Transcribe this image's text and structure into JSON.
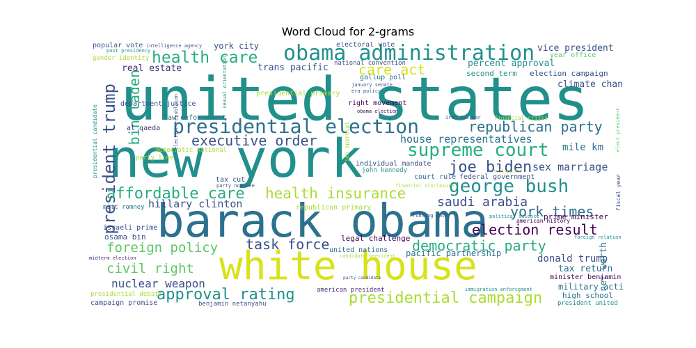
{
  "title": "Word Cloud for 2-grams",
  "palette": [
    "#440154",
    "#472c7a",
    "#3b518b",
    "#2c718e",
    "#21908d",
    "#27ad81",
    "#5cc863",
    "#aadc32",
    "#fde725"
  ],
  "words": [
    {
      "text": "united states",
      "color": "#21908d"
    },
    {
      "text": "new york",
      "color": "#21908d"
    },
    {
      "text": "barack obama",
      "color": "#2c718e"
    },
    {
      "text": "white house",
      "color": "#d8e219"
    },
    {
      "text": "presidential election",
      "color": "#2c718e"
    },
    {
      "text": "obama administration",
      "color": "#21908d"
    },
    {
      "text": "supreme court",
      "color": "#27ad81"
    },
    {
      "text": "george bush",
      "color": "#21908d"
    },
    {
      "text": "health care",
      "color": "#27ad81"
    },
    {
      "text": "president trump",
      "color": "#3b518b"
    },
    {
      "text": "affordable care",
      "color": "#27ad81"
    },
    {
      "text": "health insurance",
      "color": "#aadc32"
    },
    {
      "text": "joe biden",
      "color": "#3b518b"
    },
    {
      "text": "executive order",
      "color": "#3b518b"
    },
    {
      "text": "republican party",
      "color": "#2c718e"
    },
    {
      "text": "democratic party",
      "color": "#27ad81"
    },
    {
      "text": "election result",
      "color": "#440154"
    },
    {
      "text": "york times",
      "color": "#2c718e"
    },
    {
      "text": "saudi arabia",
      "color": "#3b518b"
    },
    {
      "text": "presidential campaign",
      "color": "#aadc32"
    },
    {
      "text": "approval rating",
      "color": "#21908d"
    },
    {
      "text": "foreign policy",
      "color": "#5cc863"
    },
    {
      "text": "civil right",
      "color": "#5cc863"
    },
    {
      "text": "task force",
      "color": "#3b518b"
    },
    {
      "text": "bin laden",
      "color": "#27ad81"
    },
    {
      "text": "care act",
      "color": "#d8e219"
    },
    {
      "text": "nuclear weapon",
      "color": "#3b518b"
    },
    {
      "text": "house representatives",
      "color": "#2c718e"
    },
    {
      "text": "hillary clinton",
      "color": "#3b518b"
    },
    {
      "text": "sex marriage",
      "color": "#3b518b"
    },
    {
      "text": "mile km",
      "color": "#2c718e"
    },
    {
      "text": "donald trump",
      "color": "#3b518b"
    },
    {
      "text": "vice president",
      "color": "#3b518b"
    },
    {
      "text": "climate change",
      "color": "#3b518b"
    },
    {
      "text": "percent approval",
      "color": "#21908d"
    },
    {
      "text": "real estate",
      "color": "#472c7a"
    },
    {
      "text": "trans pacific",
      "color": "#3b518b"
    },
    {
      "text": "york city",
      "color": "#3b518b"
    },
    {
      "text": "tax return",
      "color": "#2c718e"
    },
    {
      "text": "military action",
      "color": "#2c718e"
    },
    {
      "text": "prime minister",
      "color": "#440154"
    },
    {
      "text": "net worth",
      "color": "#2c718e"
    },
    {
      "text": "osama bin",
      "color": "#3b518b"
    },
    {
      "text": "legal challenge",
      "color": "#440154"
    },
    {
      "text": "pacific partnership",
      "color": "#2c718e"
    },
    {
      "text": "election campaign",
      "color": "#3b518b"
    },
    {
      "text": "second term",
      "color": "#21908d"
    },
    {
      "text": "year office",
      "color": "#5cc863"
    },
    {
      "text": "popular vote",
      "color": "#3b518b"
    },
    {
      "text": "gender identity",
      "color": "#aadc32"
    },
    {
      "text": "department justice",
      "color": "#3b518b"
    },
    {
      "text": "presidential primary",
      "color": "#aadc32"
    },
    {
      "text": "gallup poll",
      "color": "#2c718e"
    },
    {
      "text": "right movement",
      "color": "#440154"
    },
    {
      "text": "law enforcement",
      "color": "#2c718e"
    },
    {
      "text": "al qaeda",
      "color": "#472c7a"
    },
    {
      "text": "democratic national",
      "color": "#aadc32"
    },
    {
      "text": "party line",
      "color": "#aadc32"
    },
    {
      "text": "tax cut",
      "color": "#3b518b"
    },
    {
      "text": "court rule",
      "color": "#2c718e"
    },
    {
      "text": "federal government",
      "color": "#3b518b"
    },
    {
      "text": "individual mandate",
      "color": "#3b518b"
    },
    {
      "text": "john kennedy",
      "color": "#21908d"
    },
    {
      "text": "united nations",
      "color": "#2c718e"
    },
    {
      "text": "american president",
      "color": "#472c7a"
    },
    {
      "text": "minister benjamin",
      "color": "#440154"
    },
    {
      "text": "high school",
      "color": "#2c718e"
    },
    {
      "text": "president united",
      "color": "#21908d"
    },
    {
      "text": "campaign promise",
      "color": "#3b518b"
    },
    {
      "text": "benjamin netanyahu",
      "color": "#3b518b"
    },
    {
      "text": "presidential debate",
      "color": "#aadc32"
    },
    {
      "text": "israeli prime",
      "color": "#3b518b"
    },
    {
      "text": "mitt romney",
      "color": "#2c718e"
    },
    {
      "text": "republican primary",
      "color": "#aadc32"
    },
    {
      "text": "american history",
      "color": "#440154"
    },
    {
      "text": "electoral vote",
      "color": "#3b518b"
    },
    {
      "text": "national convention",
      "color": "#3b518b"
    },
    {
      "text": "intelligence agency",
      "color": "#3b518b"
    },
    {
      "text": "post presidency",
      "color": "#21908d"
    },
    {
      "text": "january senate",
      "color": "#3b518b"
    },
    {
      "text": "era policy",
      "color": "#3b518b"
    },
    {
      "text": "obama election",
      "color": "#440154"
    },
    {
      "text": "iran nuclear",
      "color": "#3b518b"
    },
    {
      "text": "financial crisis",
      "color": "#aadc32"
    },
    {
      "text": "elect president",
      "color": "#5cc863"
    },
    {
      "text": "fiscal year",
      "color": "#3b518b"
    },
    {
      "text": "hillary aid",
      "color": "#aadc32"
    },
    {
      "text": "party nominee",
      "color": "#3b518b"
    },
    {
      "text": "financial disclosure",
      "color": "#aadc32"
    },
    {
      "text": "running mate",
      "color": "#3b518b"
    },
    {
      "text": "political science",
      "color": "#21908d"
    },
    {
      "text": "foreign relation",
      "color": "#21908d"
    },
    {
      "text": "midterm election",
      "color": "#472c7a"
    },
    {
      "text": "candidate president",
      "color": "#aadc32"
    },
    {
      "text": "party candidate",
      "color": "#3b518b"
    },
    {
      "text": "immigration enforcement",
      "color": "#21908d"
    },
    {
      "text": "presidential candidate",
      "color": "#21908d"
    },
    {
      "text": "election republican",
      "color": "#3b518b"
    },
    {
      "text": "sexual orientation",
      "color": "#21908d"
    },
    {
      "text": "job approval",
      "color": "#aadc32"
    }
  ]
}
